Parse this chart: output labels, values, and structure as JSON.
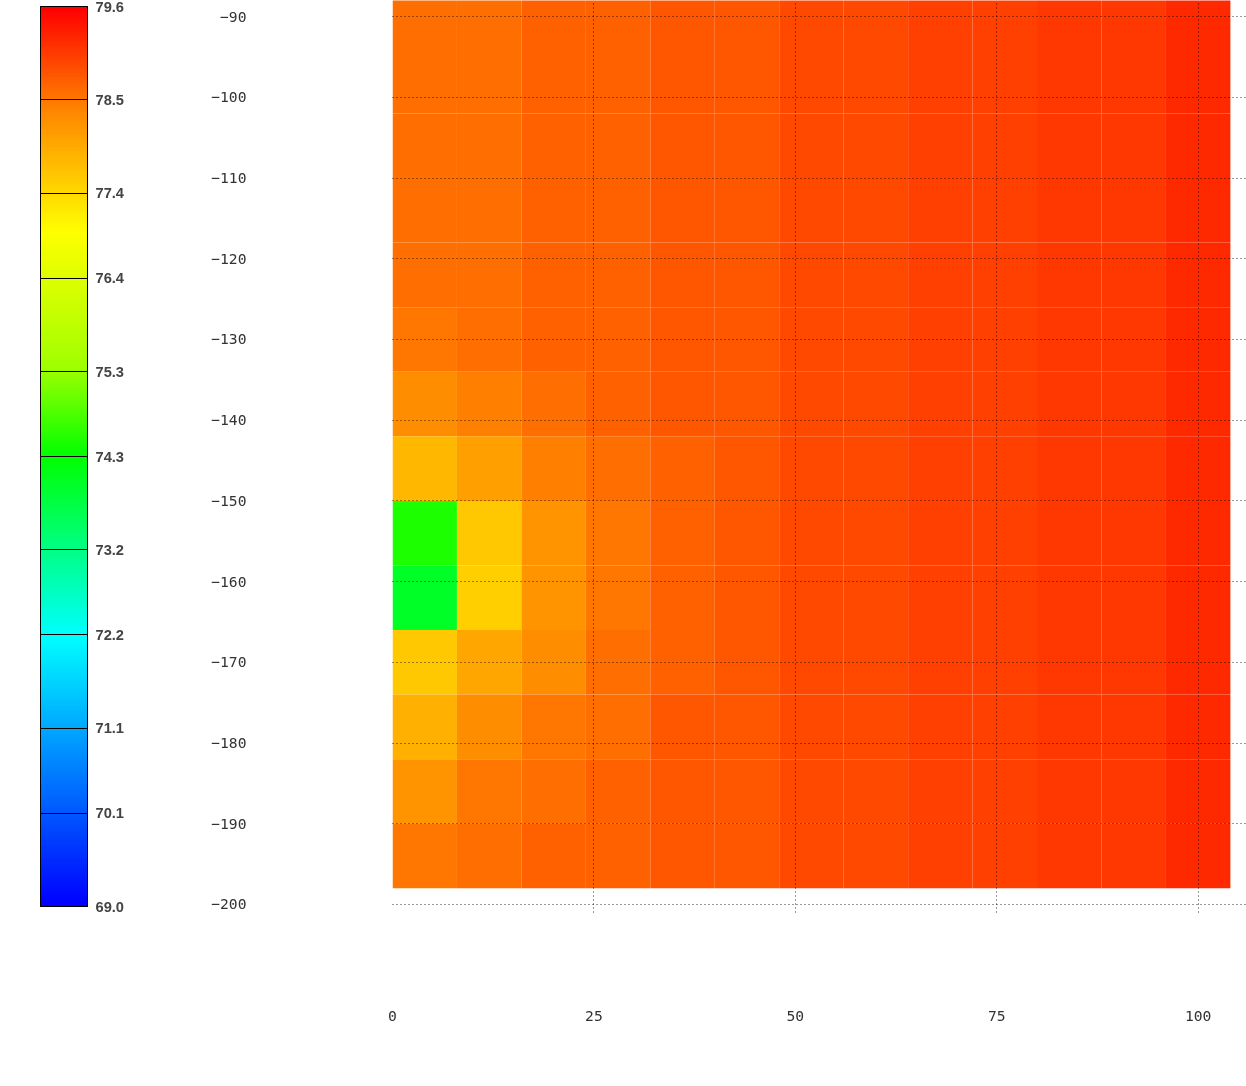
{
  "chart_data": {
    "type": "heatmap",
    "x": [
      4,
      12,
      20,
      28,
      36,
      44,
      52,
      60,
      68,
      76,
      84,
      92,
      100
    ],
    "y": [
      -90,
      -98,
      -106,
      -114,
      -122,
      -130,
      -138,
      -146,
      -154,
      -162,
      -170,
      -178,
      -186,
      -194
    ],
    "cells": [
      [
        78.6,
        78.6,
        78.7,
        78.7,
        78.8,
        78.8,
        78.9,
        78.9,
        79.0,
        79.0,
        79.1,
        79.1,
        79.2
      ],
      [
        78.6,
        78.6,
        78.7,
        78.7,
        78.8,
        78.8,
        78.9,
        78.9,
        79.0,
        79.0,
        79.1,
        79.1,
        79.2
      ],
      [
        78.6,
        78.6,
        78.7,
        78.7,
        78.8,
        78.8,
        78.9,
        78.9,
        79.0,
        79.0,
        79.1,
        79.1,
        79.2
      ],
      [
        78.6,
        78.6,
        78.7,
        78.7,
        78.8,
        78.8,
        78.9,
        78.9,
        79.0,
        79.0,
        79.1,
        79.1,
        79.2
      ],
      [
        78.6,
        78.6,
        78.7,
        78.7,
        78.8,
        78.8,
        78.9,
        78.9,
        79.0,
        79.0,
        79.1,
        79.1,
        79.2
      ],
      [
        78.5,
        78.6,
        78.7,
        78.7,
        78.8,
        78.8,
        78.9,
        78.9,
        79.0,
        79.0,
        79.1,
        79.1,
        79.2
      ],
      [
        78.3,
        78.4,
        78.6,
        78.7,
        78.8,
        78.8,
        78.9,
        78.9,
        79.0,
        79.0,
        79.1,
        79.1,
        79.2
      ],
      [
        77.8,
        78.1,
        78.4,
        78.6,
        78.7,
        78.8,
        78.9,
        78.9,
        79.0,
        79.0,
        79.1,
        79.1,
        79.2
      ],
      [
        74.5,
        77.6,
        78.2,
        78.5,
        78.7,
        78.8,
        78.9,
        78.9,
        79.0,
        79.0,
        79.1,
        79.1,
        79.2
      ],
      [
        74.0,
        77.5,
        78.2,
        78.5,
        78.7,
        78.8,
        78.9,
        78.9,
        79.0,
        79.0,
        79.1,
        79.1,
        79.2
      ],
      [
        77.6,
        78.0,
        78.3,
        78.6,
        78.7,
        78.8,
        78.9,
        78.9,
        79.0,
        79.0,
        79.1,
        79.1,
        79.2
      ],
      [
        77.9,
        78.3,
        78.5,
        78.6,
        78.8,
        78.8,
        78.9,
        78.9,
        79.0,
        79.0,
        79.1,
        79.1,
        79.2
      ],
      [
        78.2,
        78.5,
        78.6,
        78.7,
        78.8,
        78.8,
        78.9,
        78.9,
        79.0,
        79.0,
        79.1,
        79.1,
        79.2
      ],
      [
        78.5,
        78.6,
        78.7,
        78.7,
        78.8,
        78.8,
        78.9,
        78.9,
        79.0,
        79.0,
        79.1,
        79.1,
        79.2
      ]
    ],
    "xlim": [
      0,
      106
    ],
    "ylim": [
      -201,
      -88
    ],
    "xticks": [
      0,
      25,
      50,
      75,
      100
    ],
    "yticks": [
      -90,
      -100,
      -110,
      -120,
      -130,
      -140,
      -150,
      -160,
      -170,
      -180,
      -190,
      -200
    ],
    "clim": [
      69.0,
      79.6
    ],
    "cticks": [
      {
        "value": 69.0,
        "label": "69.0"
      },
      {
        "value": 70.1,
        "label": "70.1"
      },
      {
        "value": 71.1,
        "label": "71.1"
      },
      {
        "value": 72.2,
        "label": "72.2"
      },
      {
        "value": 73.2,
        "label": "73.2"
      },
      {
        "value": 74.3,
        "label": "74.3"
      },
      {
        "value": 75.3,
        "label": "75.3"
      },
      {
        "value": 76.4,
        "label": "76.4"
      },
      {
        "value": 77.4,
        "label": "77.4"
      },
      {
        "value": 78.5,
        "label": "78.5"
      },
      {
        "value": 79.6,
        "label": "79.6"
      }
    ],
    "grid": true
  }
}
